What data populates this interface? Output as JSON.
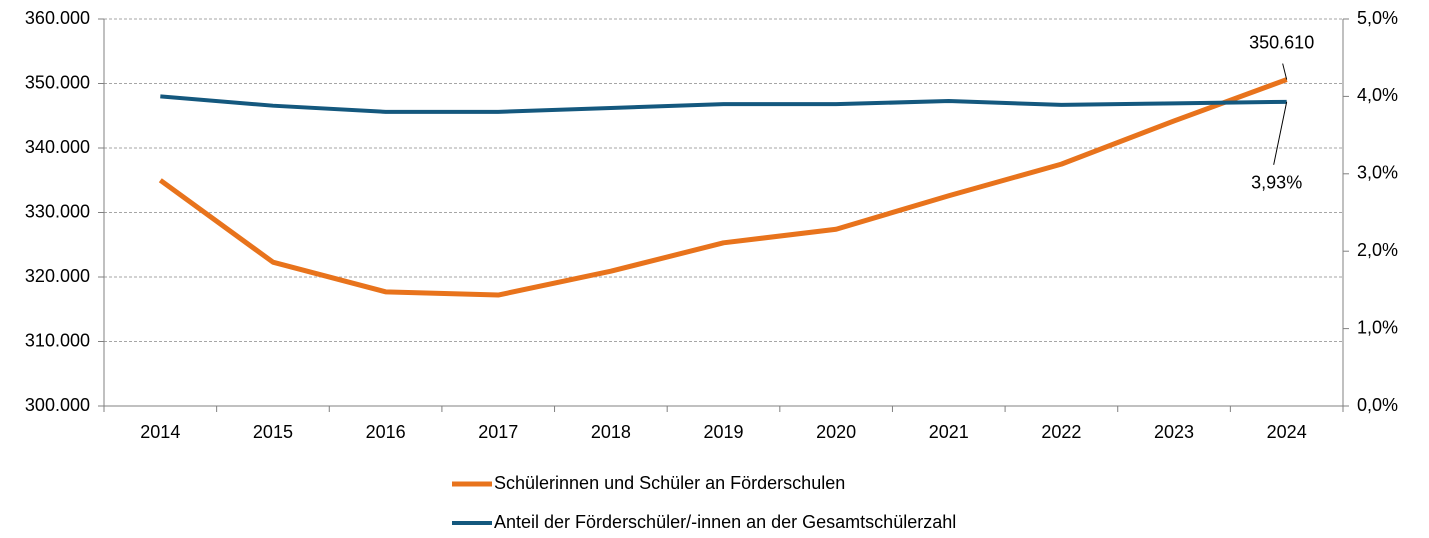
{
  "chart_data": {
    "type": "line",
    "categories": [
      "2014",
      "2015",
      "2016",
      "2017",
      "2018",
      "2019",
      "2020",
      "2021",
      "2022",
      "2023",
      "2024"
    ],
    "series": [
      {
        "name": "Schülerinnen und Schüler an Förderschulen",
        "color": "#e8731c",
        "values": [
          335000,
          322300,
          317700,
          317200,
          320900,
          325300,
          327400,
          332600,
          337500,
          344200,
          350610
        ],
        "value_labels": [
          null,
          null,
          null,
          null,
          null,
          null,
          null,
          null,
          null,
          null,
          "350.610"
        ]
      },
      {
        "name": "Anteil der Förderschüler/-innen an der Gesamtschülerzahl",
        "color": "#14587e",
        "axis": "y2",
        "values": [
          4.0,
          3.88,
          3.8,
          3.8,
          3.85,
          3.9,
          3.9,
          3.94,
          3.89,
          3.91,
          3.93
        ],
        "value_labels": [
          null,
          null,
          null,
          null,
          null,
          null,
          null,
          null,
          null,
          null,
          "3,93%"
        ]
      }
    ],
    "ylim": [
      300000,
      360000
    ],
    "yticks": [
      {
        "value": 300000,
        "label": "300.000"
      },
      {
        "value": 310000,
        "label": "310.000"
      },
      {
        "value": 320000,
        "label": "320.000"
      },
      {
        "value": 330000,
        "label": "330.000"
      },
      {
        "value": 340000,
        "label": "340.000"
      },
      {
        "value": 350000,
        "label": "350.000"
      },
      {
        "value": 360000,
        "label": "360.000"
      }
    ],
    "y2lim": [
      0,
      5
    ],
    "y2ticks": [
      {
        "value": 0,
        "label": "0,0%"
      },
      {
        "value": 1,
        "label": "1,0%"
      },
      {
        "value": 2,
        "label": "2,0%"
      },
      {
        "value": 3,
        "label": "3,0%"
      },
      {
        "value": 4,
        "label": "4,0%"
      },
      {
        "value": 5,
        "label": "5,0%"
      }
    ],
    "grid": true,
    "legend": "bottom"
  }
}
